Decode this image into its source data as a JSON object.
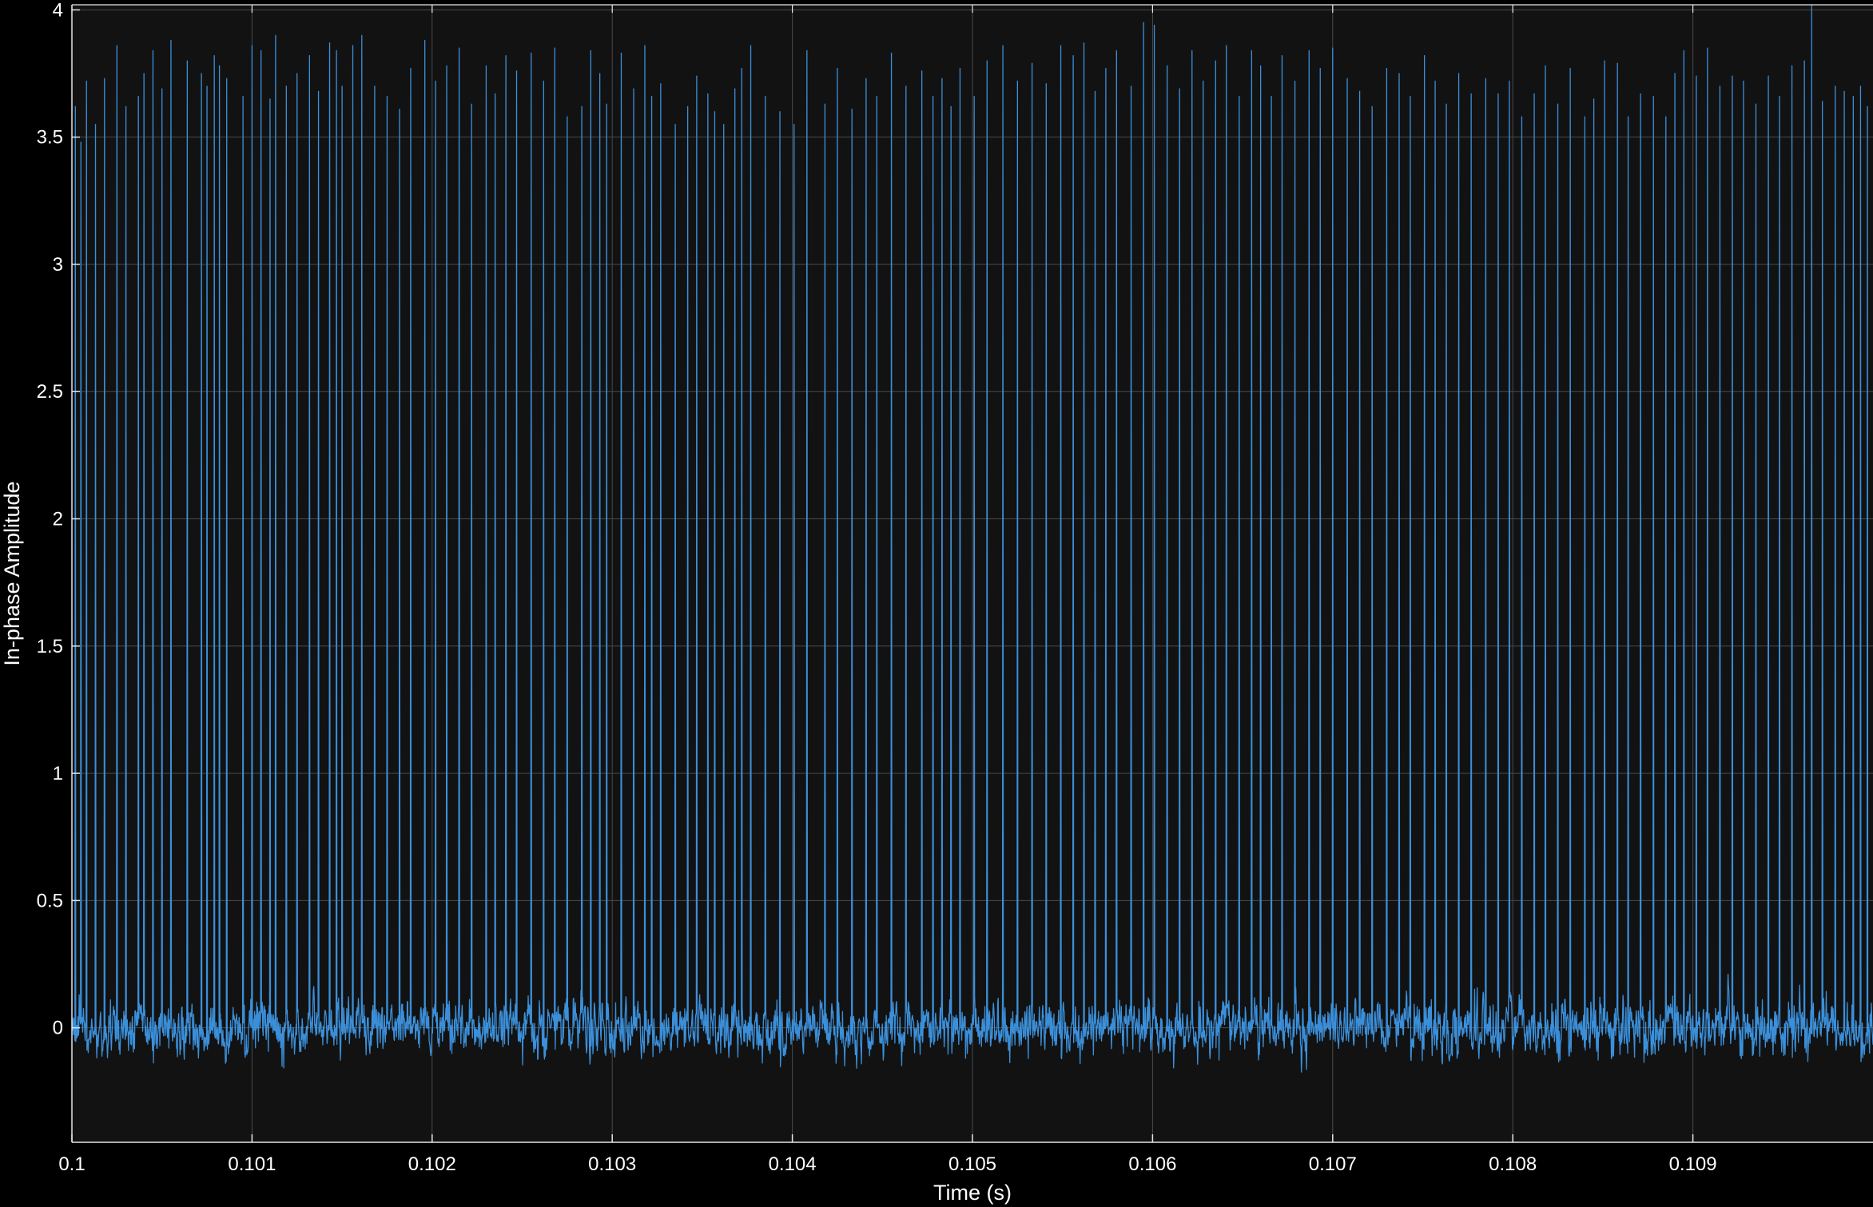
{
  "colors": {
    "background": "#000000",
    "plot_area": "#121212",
    "grid": "#4a4a4a",
    "axes": "#e6e6e6",
    "text": "#ffffff",
    "series": "#3b8fd9"
  },
  "chart_data": {
    "type": "line",
    "title": "",
    "xlabel": "Time (s)",
    "ylabel": "In-phase Amplitude",
    "xlim": [
      0.1,
      0.11
    ],
    "ylim": [
      -0.45,
      4.02
    ],
    "grid": true,
    "legend": "none",
    "xticks": [
      0.1,
      0.101,
      0.102,
      0.103,
      0.104,
      0.105,
      0.106,
      0.107,
      0.108,
      0.109
    ],
    "xtick_labels": [
      "0.1",
      "0.101",
      "0.102",
      "0.103",
      "0.104",
      "0.105",
      "0.106",
      "0.107",
      "0.108",
      "0.109"
    ],
    "yticks": [
      0,
      0.5,
      1,
      1.5,
      2,
      2.5,
      3,
      3.5,
      4
    ],
    "ytick_labels": [
      "0",
      "0.5",
      "1",
      "1.5",
      "2",
      "2.5",
      "3",
      "3.5",
      "4"
    ],
    "series": [
      {
        "noise_floor": {
          "mean": 0.0,
          "typical_range": [
            -0.3,
            0.3
          ],
          "min": -0.45
        },
        "peaks": [
          [
            0.10002,
            3.62
          ],
          [
            0.10005,
            3.48
          ],
          [
            0.10008,
            3.72
          ],
          [
            0.10013,
            3.55
          ],
          [
            0.10018,
            3.73
          ],
          [
            0.10025,
            3.86
          ],
          [
            0.1003,
            3.62
          ],
          [
            0.10037,
            3.66
          ],
          [
            0.1004,
            3.75
          ],
          [
            0.10045,
            3.84
          ],
          [
            0.1005,
            3.69
          ],
          [
            0.10055,
            3.88
          ],
          [
            0.10064,
            3.8
          ],
          [
            0.10072,
            3.75
          ],
          [
            0.10075,
            3.7
          ],
          [
            0.10079,
            3.82
          ],
          [
            0.10082,
            3.78
          ],
          [
            0.10086,
            3.73
          ],
          [
            0.10095,
            3.66
          ],
          [
            0.101,
            3.86
          ],
          [
            0.10105,
            3.84
          ],
          [
            0.1011,
            3.65
          ],
          [
            0.10113,
            3.9
          ],
          [
            0.10119,
            3.7
          ],
          [
            0.10125,
            3.75
          ],
          [
            0.10132,
            3.82
          ],
          [
            0.10137,
            3.68
          ],
          [
            0.10143,
            3.87
          ],
          [
            0.10147,
            3.84
          ],
          [
            0.1015,
            3.7
          ],
          [
            0.10156,
            3.86
          ],
          [
            0.10161,
            3.9
          ],
          [
            0.10168,
            3.7
          ],
          [
            0.10175,
            3.66
          ],
          [
            0.10182,
            3.61
          ],
          [
            0.10188,
            3.77
          ],
          [
            0.10196,
            3.88
          ],
          [
            0.10202,
            3.72
          ],
          [
            0.10208,
            3.78
          ],
          [
            0.10215,
            3.85
          ],
          [
            0.10222,
            3.63
          ],
          [
            0.1023,
            3.78
          ],
          [
            0.10235,
            3.67
          ],
          [
            0.10241,
            3.82
          ],
          [
            0.10247,
            3.76
          ],
          [
            0.10255,
            3.83
          ],
          [
            0.10262,
            3.72
          ],
          [
            0.10268,
            3.85
          ],
          [
            0.10275,
            3.58
          ],
          [
            0.10283,
            3.62
          ],
          [
            0.10288,
            3.84
          ],
          [
            0.10293,
            3.75
          ],
          [
            0.10297,
            3.63
          ],
          [
            0.10305,
            3.83
          ],
          [
            0.10312,
            3.69
          ],
          [
            0.10318,
            3.86
          ],
          [
            0.10322,
            3.66
          ],
          [
            0.10327,
            3.71
          ],
          [
            0.10335,
            3.55
          ],
          [
            0.10342,
            3.62
          ],
          [
            0.10347,
            3.74
          ],
          [
            0.10353,
            3.67
          ],
          [
            0.10357,
            3.6
          ],
          [
            0.10362,
            3.55
          ],
          [
            0.10368,
            3.69
          ],
          [
            0.10372,
            3.77
          ],
          [
            0.10377,
            3.86
          ],
          [
            0.10385,
            3.66
          ],
          [
            0.10393,
            3.6
          ],
          [
            0.10401,
            3.55
          ],
          [
            0.10408,
            3.84
          ],
          [
            0.10418,
            3.63
          ],
          [
            0.10425,
            3.77
          ],
          [
            0.10433,
            3.61
          ],
          [
            0.10441,
            3.73
          ],
          [
            0.10447,
            3.66
          ],
          [
            0.10455,
            3.83
          ],
          [
            0.10463,
            3.7
          ],
          [
            0.10472,
            3.76
          ],
          [
            0.10478,
            3.66
          ],
          [
            0.10483,
            3.73
          ],
          [
            0.10488,
            3.62
          ],
          [
            0.10493,
            3.77
          ],
          [
            0.10501,
            3.66
          ],
          [
            0.10508,
            3.8
          ],
          [
            0.10517,
            3.86
          ],
          [
            0.10525,
            3.72
          ],
          [
            0.10533,
            3.79
          ],
          [
            0.10541,
            3.71
          ],
          [
            0.10549,
            3.86
          ],
          [
            0.10556,
            3.82
          ],
          [
            0.10562,
            3.87
          ],
          [
            0.10568,
            3.68
          ],
          [
            0.10574,
            3.77
          ],
          [
            0.1058,
            3.84
          ],
          [
            0.10588,
            3.7
          ],
          [
            0.10595,
            3.95
          ],
          [
            0.10601,
            3.94
          ],
          [
            0.10608,
            3.78
          ],
          [
            0.10615,
            3.69
          ],
          [
            0.10622,
            3.84
          ],
          [
            0.10628,
            3.72
          ],
          [
            0.10635,
            3.8
          ],
          [
            0.10641,
            3.86
          ],
          [
            0.10648,
            3.66
          ],
          [
            0.10655,
            3.84
          ],
          [
            0.1066,
            3.78
          ],
          [
            0.10666,
            3.66
          ],
          [
            0.10672,
            3.82
          ],
          [
            0.10679,
            3.72
          ],
          [
            0.10687,
            3.84
          ],
          [
            0.10693,
            3.77
          ],
          [
            0.107,
            3.85
          ],
          [
            0.10708,
            3.73
          ],
          [
            0.10715,
            3.68
          ],
          [
            0.10722,
            3.62
          ],
          [
            0.1073,
            3.77
          ],
          [
            0.10737,
            3.75
          ],
          [
            0.10743,
            3.66
          ],
          [
            0.10751,
            3.82
          ],
          [
            0.10757,
            3.72
          ],
          [
            0.10763,
            3.63
          ],
          [
            0.1077,
            3.75
          ],
          [
            0.10777,
            3.67
          ],
          [
            0.10785,
            3.73
          ],
          [
            0.10792,
            3.67
          ],
          [
            0.10798,
            3.72
          ],
          [
            0.10805,
            3.58
          ],
          [
            0.10812,
            3.67
          ],
          [
            0.10818,
            3.78
          ],
          [
            0.10825,
            3.63
          ],
          [
            0.10832,
            3.77
          ],
          [
            0.1084,
            3.58
          ],
          [
            0.10845,
            3.65
          ],
          [
            0.10851,
            3.8
          ],
          [
            0.10858,
            3.79
          ],
          [
            0.10864,
            3.58
          ],
          [
            0.10871,
            3.67
          ],
          [
            0.10878,
            3.66
          ],
          [
            0.10885,
            3.58
          ],
          [
            0.1089,
            3.75
          ],
          [
            0.10895,
            3.84
          ],
          [
            0.10902,
            3.74
          ],
          [
            0.10908,
            3.85
          ],
          [
            0.10915,
            3.7
          ],
          [
            0.10922,
            3.74
          ],
          [
            0.10928,
            3.72
          ],
          [
            0.10935,
            3.63
          ],
          [
            0.10942,
            3.74
          ],
          [
            0.10948,
            3.66
          ],
          [
            0.10955,
            3.78
          ],
          [
            0.10962,
            3.8
          ],
          [
            0.10966,
            4.02
          ],
          [
            0.10972,
            3.64
          ],
          [
            0.10979,
            3.7
          ],
          [
            0.10984,
            3.68
          ],
          [
            0.10989,
            3.66
          ],
          [
            0.10993,
            3.7
          ],
          [
            0.10997,
            3.62
          ]
        ]
      }
    ]
  }
}
